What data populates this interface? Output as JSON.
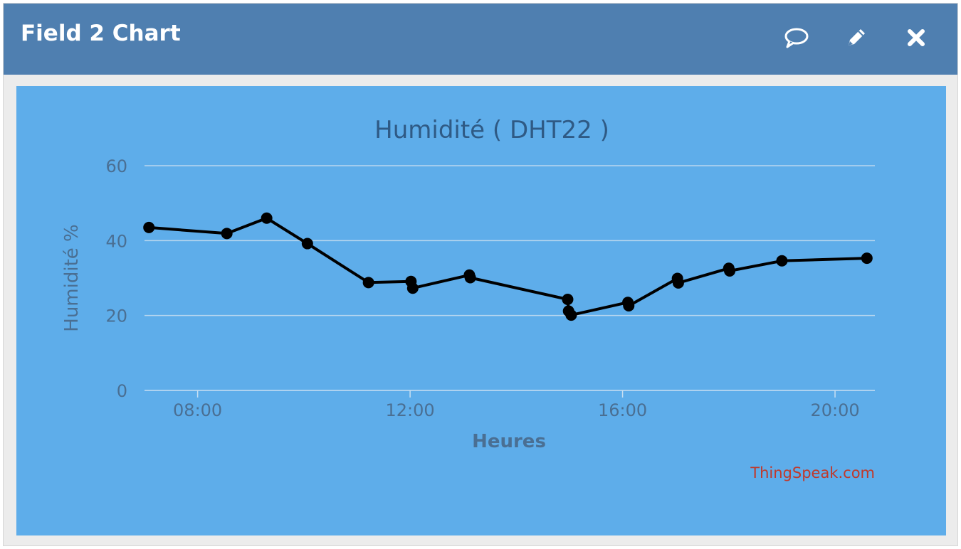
{
  "header": {
    "title": "Field 2 Chart",
    "buttons": [
      {
        "icon": "comment-icon",
        "label": "Comments"
      },
      {
        "icon": "pencil-icon",
        "label": "Edit"
      },
      {
        "icon": "close-icon",
        "label": "Close"
      }
    ]
  },
  "chart_data": {
    "type": "line",
    "title": "Humidité ( DHT22 )",
    "xlabel": "Heures",
    "ylabel": "Humidité %",
    "credit": "ThingSpeak.com",
    "ylim": [
      0,
      60
    ],
    "xlim": [
      "07:00",
      "20:45"
    ],
    "x_ticks": [
      "08:00",
      "12:00",
      "16:00",
      "20:00"
    ],
    "y_ticks": [
      0,
      20,
      40,
      60
    ],
    "grid": true,
    "series": [
      {
        "color": "#000000",
        "points": [
          {
            "x": "07:05",
            "y": 43.5
          },
          {
            "x": "08:33",
            "y": 41.9
          },
          {
            "x": "09:18",
            "y": 46.0
          },
          {
            "x": "10:04",
            "y": 39.2
          },
          {
            "x": "11:13",
            "y": 28.8
          },
          {
            "x": "12:01",
            "y": 29.1
          },
          {
            "x": "12:03",
            "y": 27.3
          },
          {
            "x": "13:07",
            "y": 30.8
          },
          {
            "x": "13:08",
            "y": 30.1
          },
          {
            "x": "14:58",
            "y": 24.3
          },
          {
            "x": "14:59",
            "y": 21.2
          },
          {
            "x": "15:02",
            "y": 20.1
          },
          {
            "x": "16:06",
            "y": 23.5
          },
          {
            "x": "16:07",
            "y": 22.6
          },
          {
            "x": "17:02",
            "y": 29.9
          },
          {
            "x": "17:03",
            "y": 28.7
          },
          {
            "x": "18:00",
            "y": 32.6
          },
          {
            "x": "18:01",
            "y": 31.9
          },
          {
            "x": "19:00",
            "y": 34.6
          },
          {
            "x": "20:36",
            "y": 35.3
          }
        ]
      }
    ]
  },
  "colors": {
    "header_bg": "#4f7fb0",
    "panel_bg": "#5eadea",
    "title_color": "#2f5a85",
    "axis_text": "#4a6f93",
    "grid": "#b9d7ef",
    "credit_color": "#c0392b",
    "line": "#000000"
  }
}
